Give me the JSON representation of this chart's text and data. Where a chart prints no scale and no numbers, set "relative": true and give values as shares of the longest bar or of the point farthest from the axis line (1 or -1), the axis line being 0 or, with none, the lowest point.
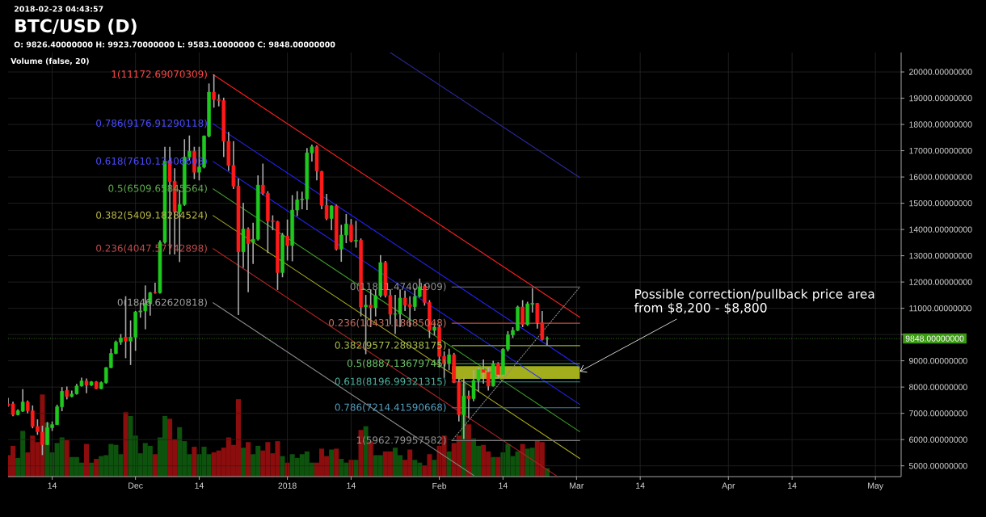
{
  "chart_data": [
    {
      "type": "candlestick",
      "title": "BTC/USD (D)",
      "subtitle": "O: 9826.40000000 H: 9923.70000000 L: 9583.10000000 C: 9848.00000000",
      "annotations": [
        "2018-02-23 04:43:57",
        {
          "text": "Possible correction/pullback price area from $8,200 - $8,800",
          "x": "2018-03-01T16:00",
          "y": 8590
        }
      ],
      "x": [
        "2017-11-05",
        "2017-11-06",
        "2017-11-07",
        "2017-11-08",
        "2017-11-09",
        "2017-11-10",
        "2017-11-11",
        "2017-11-12",
        "2017-11-13",
        "2017-11-14",
        "2017-11-15",
        "2017-11-16",
        "2017-11-17",
        "2017-11-18",
        "2017-11-19",
        "2017-11-20",
        "2017-11-21",
        "2017-11-22",
        "2017-11-23",
        "2017-11-24",
        "2017-11-25",
        "2017-11-26",
        "2017-11-27",
        "2017-11-28",
        "2017-11-29",
        "2017-11-30",
        "2017-12-01",
        "2017-12-02",
        "2017-12-03",
        "2017-12-04",
        "2017-12-05",
        "2017-12-06",
        "2017-12-07",
        "2017-12-08",
        "2017-12-09",
        "2017-12-10",
        "2017-12-11",
        "2017-12-12",
        "2017-12-13",
        "2017-12-14",
        "2017-12-15",
        "2017-12-16",
        "2017-12-17",
        "2017-12-18",
        "2017-12-19",
        "2017-12-20",
        "2017-12-21",
        "2017-12-22",
        "2017-12-23",
        "2017-12-24",
        "2017-12-25",
        "2017-12-26",
        "2017-12-27",
        "2017-12-28",
        "2017-12-29",
        "2017-12-30",
        "2017-12-31",
        "2018-01-01",
        "2018-01-02",
        "2018-01-03",
        "2018-01-04",
        "2018-01-05",
        "2018-01-06",
        "2018-01-07",
        "2018-01-08",
        "2018-01-09",
        "2018-01-10",
        "2018-01-11",
        "2018-01-12",
        "2018-01-13",
        "2018-01-14",
        "2018-01-15",
        "2018-01-16",
        "2018-01-17",
        "2018-01-18",
        "2018-01-19",
        "2018-01-20",
        "2018-01-21",
        "2018-01-22",
        "2018-01-23",
        "2018-01-24",
        "2018-01-25",
        "2018-01-26",
        "2018-01-27",
        "2018-01-28",
        "2018-01-29",
        "2018-01-30",
        "2018-01-31",
        "2018-02-01",
        "2018-02-02",
        "2018-02-03",
        "2018-02-04",
        "2018-02-05",
        "2018-02-06",
        "2018-02-07",
        "2018-02-08",
        "2018-02-09",
        "2018-02-10",
        "2018-02-11",
        "2018-02-12",
        "2018-02-13",
        "2018-02-14",
        "2018-02-15",
        "2018-02-16",
        "2018-02-17",
        "2018-02-18",
        "2018-02-19",
        "2018-02-20",
        "2018-02-21",
        "2018-02-22",
        "2018-02-23"
      ],
      "ohlc": [
        [
          7360,
          7590,
          7250,
          7300
        ],
        [
          7360,
          7440,
          6890,
          6950
        ],
        [
          6950,
          7150,
          6920,
          7100
        ],
        [
          7080,
          7920,
          7050,
          7430
        ],
        [
          7430,
          7490,
          7000,
          7100
        ],
        [
          7100,
          7300,
          6430,
          6500
        ],
        [
          6500,
          6770,
          6180,
          6300
        ],
        [
          6280,
          6530,
          5410,
          5810
        ],
        [
          5810,
          6670,
          5790,
          6450
        ],
        [
          6450,
          6690,
          6330,
          6570
        ],
        [
          6570,
          7330,
          6560,
          7250
        ],
        [
          7250,
          8000,
          7080,
          7840
        ],
        [
          7870,
          8020,
          7530,
          7640
        ],
        [
          7640,
          7870,
          7610,
          7740
        ],
        [
          7740,
          8120,
          7710,
          8040
        ],
        [
          8040,
          8360,
          8020,
          8230
        ],
        [
          8230,
          8330,
          7770,
          8070
        ],
        [
          8070,
          8230,
          8040,
          8200
        ],
        [
          8200,
          8230,
          7920,
          7940
        ],
        [
          7940,
          8210,
          7920,
          8170
        ],
        [
          8170,
          8760,
          8130,
          8740
        ],
        [
          8740,
          9460,
          8720,
          9280
        ],
        [
          9280,
          9770,
          9250,
          9710
        ],
        [
          9710,
          10020,
          9610,
          9870
        ],
        [
          9900,
          11460,
          9100,
          9750
        ],
        [
          9750,
          10540,
          8840,
          9900
        ],
        [
          9900,
          10900,
          9380,
          10860
        ],
        [
          10860,
          11200,
          10640,
          10900
        ],
        [
          10900,
          11870,
          10200,
          11170
        ],
        [
          11170,
          11630,
          10720,
          11590
        ],
        [
          11600,
          11970,
          11560,
          11590
        ],
        [
          11590,
          13590,
          11560,
          13510
        ],
        [
          13510,
          17150,
          13460,
          16610
        ],
        [
          16610,
          17150,
          13050,
          15820
        ],
        [
          15840,
          16330,
          13050,
          14670
        ],
        [
          14670,
          15510,
          12760,
          14950
        ],
        [
          14950,
          17440,
          14900,
          16760
        ],
        [
          16760,
          17580,
          16640,
          16980
        ],
        [
          16980,
          17150,
          15920,
          16180
        ],
        [
          16180,
          17150,
          15870,
          16380
        ],
        [
          16380,
          17580,
          16330,
          17560
        ],
        [
          17560,
          19560,
          17510,
          19230
        ],
        [
          19230,
          19900,
          18640,
          18950
        ],
        [
          18950,
          19150,
          18690,
          18910
        ],
        [
          18910,
          19020,
          16760,
          17360
        ],
        [
          17360,
          17720,
          16230,
          16440
        ],
        [
          16440,
          17360,
          15540,
          15650
        ],
        [
          15650,
          15940,
          10740,
          13150
        ],
        [
          13150,
          15020,
          12540,
          14020
        ],
        [
          14020,
          14080,
          11610,
          13460
        ],
        [
          13510,
          14260,
          12690,
          13630
        ],
        [
          13630,
          16060,
          13580,
          15690
        ],
        [
          15690,
          16510,
          15310,
          15380
        ],
        [
          15380,
          15460,
          13100,
          14330
        ],
        [
          14330,
          14540,
          13970,
          14300
        ],
        [
          14300,
          14330,
          11700,
          12360
        ],
        [
          12360,
          13870,
          12180,
          13790
        ],
        [
          13750,
          14380,
          12820,
          13390
        ],
        [
          13390,
          15310,
          12790,
          14740
        ],
        [
          14740,
          15460,
          14510,
          15130
        ],
        [
          15130,
          15440,
          14770,
          15160
        ],
        [
          15160,
          17100,
          14740,
          16920
        ],
        [
          16920,
          17230,
          16590,
          17150
        ],
        [
          17150,
          17200,
          15870,
          16230
        ],
        [
          16210,
          16230,
          14770,
          14920
        ],
        [
          14920,
          15360,
          14360,
          14420
        ],
        [
          14420,
          14920,
          13970,
          14900
        ],
        [
          14900,
          14950,
          13200,
          13250
        ],
        [
          13250,
          14180,
          12770,
          13790
        ],
        [
          13790,
          14590,
          13480,
          14210
        ],
        [
          14180,
          14400,
          13510,
          13560
        ],
        [
          13560,
          14330,
          13310,
          13590
        ],
        [
          13590,
          13660,
          10690,
          11050
        ],
        [
          11050,
          11510,
          9250,
          11120
        ],
        [
          11120,
          11720,
          10280,
          11020
        ],
        [
          11020,
          11720,
          10690,
          11480
        ],
        [
          11480,
          13030,
          11410,
          12740
        ],
        [
          12740,
          12800,
          11410,
          11490
        ],
        [
          11490,
          11720,
          10380,
          10770
        ],
        [
          10770,
          11510,
          10020,
          10790
        ],
        [
          10790,
          11720,
          10280,
          11390
        ],
        [
          11390,
          11670,
          10900,
          11120
        ],
        [
          11140,
          11460,
          10280,
          11060
        ],
        [
          11060,
          11770,
          10900,
          11450
        ],
        [
          11450,
          12130,
          11410,
          11820
        ],
        [
          11840,
          11920,
          11100,
          11220
        ],
        [
          11220,
          11310,
          9870,
          10160
        ],
        [
          10160,
          10480,
          9970,
          10280
        ],
        [
          10280,
          10380,
          8740,
          9170
        ],
        [
          9170,
          9360,
          8350,
          8890
        ],
        [
          8890,
          9460,
          8640,
          9230
        ],
        [
          9230,
          9300,
          8150,
          8180
        ],
        [
          8180,
          8330,
          6690,
          6950
        ],
        [
          6950,
          8350,
          6020,
          7660
        ],
        [
          7660,
          7870,
          6810,
          7560
        ],
        [
          7560,
          8640,
          7460,
          8250
        ],
        [
          8250,
          8740,
          7820,
          8660
        ],
        [
          8660,
          9050,
          8130,
          8560
        ],
        [
          8560,
          8740,
          7870,
          8040
        ],
        [
          8040,
          9000,
          8020,
          8890
        ],
        [
          8890,
          8950,
          8330,
          8480
        ],
        [
          8480,
          9480,
          8430,
          9440
        ],
        [
          9440,
          10130,
          9360,
          9990
        ],
        [
          9990,
          10280,
          9870,
          10160
        ],
        [
          10160,
          11100,
          10130,
          11050
        ],
        [
          11050,
          11310,
          10280,
          10380
        ],
        [
          10380,
          11250,
          10330,
          11170
        ],
        [
          11150,
          11770,
          10840,
          11190
        ],
        [
          11190,
          11200,
          10230,
          10450
        ],
        [
          10450,
          10900,
          9770,
          9810
        ],
        [
          9826.4,
          9923.7,
          9583.1,
          9848
        ]
      ],
      "colors": [
        "#ff1a1a",
        "#ff1a1a",
        "#1ec81e",
        "#1ec81e",
        "#ff1a1a",
        "#ff1a1a",
        "#ff1a1a",
        "#ff1a1a",
        "#1ec81e",
        "#1ec81e",
        "#1ec81e",
        "#1ec81e",
        "#ff1a1a",
        "#1ec81e",
        "#1ec81e",
        "#1ec81e",
        "#ff1a1a",
        "#1ec81e",
        "#ff1a1a",
        "#1ec81e",
        "#1ec81e",
        "#1ec81e",
        "#1ec81e",
        "#1ec81e",
        "#ff1a1a",
        "#1ec81e",
        "#1ec81e",
        "#1ec81e",
        "#1ec81e",
        "#1ec81e",
        "#ff1a1a",
        "#1ec81e",
        "#1ec81e",
        "#ff1a1a",
        "#ff1a1a",
        "#1ec81e",
        "#1ec81e",
        "#1ec81e",
        "#ff1a1a",
        "#1ec81e",
        "#1ec81e",
        "#1ec81e",
        "#ff1a1a",
        "#ff1a1a",
        "#ff1a1a",
        "#ff1a1a",
        "#ff1a1a",
        "#ff1a1a",
        "#1ec81e",
        "#ff1a1a",
        "#1ec81e",
        "#1ec81e",
        "#ff1a1a",
        "#ff1a1a",
        "#ff1a1a",
        "#ff1a1a",
        "#1ec81e",
        "#ff1a1a",
        "#1ec81e",
        "#1ec81e",
        "#1ec81e",
        "#1ec81e",
        "#1ec81e",
        "#ff1a1a",
        "#ff1a1a",
        "#ff1a1a",
        "#1ec81e",
        "#ff1a1a",
        "#1ec81e",
        "#1ec81e",
        "#ff1a1a",
        "#1ec81e",
        "#ff1a1a",
        "#1ec81e",
        "#ff1a1a",
        "#1ec81e",
        "#1ec81e",
        "#ff1a1a",
        "#ff1a1a",
        "#1ec81e",
        "#1ec81e",
        "#ff1a1a",
        "#ff1a1a",
        "#1ec81e",
        "#1ec81e",
        "#ff1a1a",
        "#ff1a1a",
        "#1ec81e",
        "#ff1a1a",
        "#ff1a1a",
        "#1ec81e",
        "#ff1a1a",
        "#ff1a1a",
        "#1ec81e",
        "#ff1a1a",
        "#1ec81e",
        "#1ec81e",
        "#ff1a1a",
        "#ff1a1a",
        "#1ec81e",
        "#ff1a1a",
        "#1ec81e",
        "#1ec81e",
        "#1ec81e",
        "#1ec81e",
        "#ff1a1a",
        "#1ec81e",
        "#1ec81e",
        "#ff1a1a",
        "#ff1a1a",
        "#1ec81e"
      ],
      "series": [
        {
          "type": "area",
          "x": [
            "2018-02-03T14:00",
            "2018-03-01T16:00"
          ],
          "values": [
            null,
            null
          ],
          "upper": [
            8800,
            8800
          ],
          "lower": [
            8310,
            8310
          ],
          "color": "#a3ae1c"
        },
        {
          "type": "line",
          "name": "1(11172.69070309)",
          "x": [
            "2017-12-16T20:00",
            "2018-03-01T16:00"
          ],
          "values": [
            19900,
            10660
          ],
          "color": "#ff1f1f"
        },
        {
          "type": "line",
          "name": "0.786(9176.91290118)",
          "x": [
            "2017-12-16T20:00",
            "2018-03-01T16:00"
          ],
          "values": [
            18030,
            8780
          ],
          "color": "#2323ff"
        },
        {
          "type": "line",
          "name": "0.618(7610.13406603)",
          "x": [
            "2017-12-16T20:00",
            "2018-03-01T16:00"
          ],
          "values": [
            16590,
            7340
          ],
          "color": "#2323ff"
        },
        {
          "type": "line",
          "name": "0.5(6509.65845564)",
          "x": [
            "2017-12-16T20:00",
            "2018-03-01T16:00"
          ],
          "values": [
            15550,
            6300
          ],
          "color": "#3c9a2a"
        },
        {
          "type": "line",
          "name": "0.382(5409.18284524)",
          "x": [
            "2017-12-16T20:00",
            "2018-03-01T16:00"
          ],
          "values": [
            14530,
            5280
          ],
          "color": "#a8a81e"
        },
        {
          "type": "line",
          "name": "0.236(4047.57742898)",
          "x": [
            "2017-12-16T20:00",
            "2018-02-25"
          ],
          "values": [
            13270,
            4610
          ],
          "color": "#b02424"
        },
        {
          "type": "line",
          "name": "0(1846.62620818)",
          "x": [
            "2017-12-16T20:00",
            "2018-02-08"
          ],
          "values": [
            11210,
            4640
          ],
          "color": "#8a8a8a"
        },
        {
          "type": "line",
          "x": [
            "2018-01-22",
            "2018-03-01T16:00"
          ],
          "values": [
            20740,
            15980
          ],
          "color": "#2a2aa0"
        },
        {
          "type": "line",
          "name": "0(11811.47401909)",
          "x": [
            "2018-02-03T14:00",
            "2018-03-01T16:00"
          ],
          "values": [
            11811.47401909,
            11811.47401909
          ],
          "color": "#7a7a7a"
        },
        {
          "type": "line",
          "name": "0.236(10431.18685048)",
          "x": [
            "2018-02-03T14:00",
            "2018-03-01T16:00"
          ],
          "values": [
            10431.18685048,
            10431.18685048
          ],
          "color": "#c0503c"
        },
        {
          "type": "line",
          "name": "0.382(9577.28038175)",
          "x": [
            "2018-02-03T14:00",
            "2018-03-01T16:00"
          ],
          "values": [
            9577.28038175,
            9577.28038175
          ],
          "color": "#9ab32a"
        },
        {
          "type": "line",
          "name": "0.5(8887.13679745)",
          "x": [
            "2018-02-03T14:00",
            "2018-03-01T16:00"
          ],
          "values": [
            8887.13679745,
            8887.13679745
          ],
          "color": "#4cbb4c"
        },
        {
          "type": "line",
          "name": "0.618(8196.99321315)",
          "x": [
            "2018-02-03T14:00",
            "2018-03-01T16:00"
          ],
          "values": [
            8196.99321315,
            8196.99321315
          ],
          "color": "#27a08a"
        },
        {
          "type": "line",
          "name": "0.786(7214.41590668)",
          "x": [
            "2018-02-03T14:00",
            "2018-03-01T16:00"
          ],
          "values": [
            7214.41590668,
            7214.41590668
          ],
          "color": "#2f87b0"
        },
        {
          "type": "line",
          "name": "1(5962.79957582)",
          "x": [
            "2018-02-03T14:00",
            "2018-03-01T16:00"
          ],
          "values": [
            5962.79957582,
            5962.79957582
          ],
          "color": "#7a7a7a"
        },
        {
          "type": "line",
          "x": [
            "2018-02-03T14:00",
            "2018-03-01T16:00"
          ],
          "values": [
            5960,
            11810
          ],
          "color": "#8a8a8a",
          "line_style": "dotted"
        }
      ],
      "xlim": [
        "2017-11-05",
        "2018-05-06T06:00"
      ],
      "xticks": [
        {
          "value": "2017-11-14",
          "label": "14"
        },
        {
          "value": "2017-12-01",
          "label": "Dec"
        },
        {
          "value": "2017-12-14",
          "label": "14"
        },
        {
          "value": "2018-01-01",
          "label": "2018"
        },
        {
          "value": "2018-01-14",
          "label": "14"
        },
        {
          "value": "2018-02-01",
          "label": "Feb"
        },
        {
          "value": "2018-02-14",
          "label": "14"
        },
        {
          "value": "2018-03-01",
          "label": "Mar"
        },
        {
          "value": "2018-03-14",
          "label": "14"
        },
        {
          "value": "2018-04-01",
          "label": "Apr"
        },
        {
          "value": "2018-04-14",
          "label": "14"
        },
        {
          "value": "2018-05-01",
          "label": "May"
        }
      ],
      "ylim": [
        4590,
        20740
      ],
      "yticks": [
        {
          "value": 5000,
          "label": "5000.00000000"
        },
        {
          "value": 6000,
          "label": "6000.00000000"
        },
        {
          "value": 7000,
          "label": "7000.00000000"
        },
        {
          "value": 8000,
          "label": "8000.00000000"
        },
        {
          "value": 9000,
          "label": "9000.00000000"
        },
        {
          "value": 10000,
          "label": null
        },
        {
          "value": 11000,
          "label": "11000.00000000"
        },
        {
          "value": 12000,
          "label": "12000.00000000"
        },
        {
          "value": 13000,
          "label": "13000.00000000"
        },
        {
          "value": 14000,
          "label": "14000.00000000"
        },
        {
          "value": 15000,
          "label": "15000.00000000"
        },
        {
          "value": 16000,
          "label": "16000.00000000"
        },
        {
          "value": 17000,
          "label": "17000.00000000"
        },
        {
          "value": 18000,
          "label": "18000.00000000"
        },
        {
          "value": 19000,
          "label": "19000.00000000"
        },
        {
          "value": 20000,
          "label": "20000.00000000"
        }
      ],
      "ref_lines": [
        {
          "axis": "y",
          "value": 9848,
          "label": "9848.00000000",
          "color": "#3c9a14",
          "line_style": "dotted"
        }
      ],
      "grid": true
    },
    {
      "type": "bar",
      "title": "Volume (false, 20)",
      "relative": true,
      "x": [
        "2017-11-05",
        "2017-11-06",
        "2017-11-07",
        "2017-11-08",
        "2017-11-09",
        "2017-11-10",
        "2017-11-11",
        "2017-11-12",
        "2017-11-13",
        "2017-11-14",
        "2017-11-15",
        "2017-11-16",
        "2017-11-17",
        "2017-11-18",
        "2017-11-19",
        "2017-11-20",
        "2017-11-21",
        "2017-11-22",
        "2017-11-23",
        "2017-11-24",
        "2017-11-25",
        "2017-11-26",
        "2017-11-27",
        "2017-11-28",
        "2017-11-29",
        "2017-11-30",
        "2017-12-01",
        "2017-12-02",
        "2017-12-03",
        "2017-12-04",
        "2017-12-05",
        "2017-12-06",
        "2017-12-07",
        "2017-12-08",
        "2017-12-09",
        "2017-12-10",
        "2017-12-11",
        "2017-12-12",
        "2017-12-13",
        "2017-12-14",
        "2017-12-15",
        "2017-12-16",
        "2017-12-17",
        "2017-12-18",
        "2017-12-19",
        "2017-12-20",
        "2017-12-21",
        "2017-12-22",
        "2017-12-23",
        "2017-12-24",
        "2017-12-25",
        "2017-12-26",
        "2017-12-27",
        "2017-12-28",
        "2017-12-29",
        "2017-12-30",
        "2017-12-31",
        "2018-01-01",
        "2018-01-02",
        "2018-01-03",
        "2018-01-04",
        "2018-01-05",
        "2018-01-06",
        "2018-01-07",
        "2018-01-08",
        "2018-01-09",
        "2018-01-10",
        "2018-01-11",
        "2018-01-12",
        "2018-01-13",
        "2018-01-14",
        "2018-01-15",
        "2018-01-16",
        "2018-01-17",
        "2018-01-18",
        "2018-01-19",
        "2018-01-20",
        "2018-01-21",
        "2018-01-22",
        "2018-01-23",
        "2018-01-24",
        "2018-01-25",
        "2018-01-26",
        "2018-01-27",
        "2018-01-28",
        "2018-01-29",
        "2018-01-30",
        "2018-01-31",
        "2018-02-01",
        "2018-02-02",
        "2018-02-03",
        "2018-02-04",
        "2018-02-05",
        "2018-02-06",
        "2018-02-07",
        "2018-02-08",
        "2018-02-09",
        "2018-02-10",
        "2018-02-11",
        "2018-02-12",
        "2018-02-13",
        "2018-02-14",
        "2018-02-15",
        "2018-02-16",
        "2018-02-17",
        "2018-02-18",
        "2018-02-19",
        "2018-02-20",
        "2018-02-21",
        "2018-02-22",
        "2018-02-23"
      ],
      "values": [
        0.23,
        0.33,
        0.2,
        0.49,
        0.26,
        0.44,
        0.37,
        0.88,
        0.58,
        0.26,
        0.36,
        0.42,
        0.39,
        0.21,
        0.21,
        0.15,
        0.35,
        0.15,
        0.19,
        0.22,
        0.23,
        0.35,
        0.34,
        0.24,
        0.69,
        0.65,
        0.44,
        0.25,
        0.36,
        0.33,
        0.24,
        0.42,
        0.65,
        0.62,
        0.4,
        0.53,
        0.38,
        0.24,
        0.32,
        0.24,
        0.32,
        0.24,
        0.26,
        0.28,
        0.31,
        0.42,
        0.34,
        0.83,
        0.31,
        0.37,
        0.24,
        0.33,
        0.28,
        0.37,
        0.25,
        0.38,
        0.22,
        0.15,
        0.24,
        0.2,
        0.24,
        0.27,
        0.15,
        0.15,
        0.3,
        0.22,
        0.29,
        0.3,
        0.19,
        0.15,
        0.18,
        0.18,
        0.5,
        0.54,
        0.38,
        0.23,
        0.23,
        0.27,
        0.27,
        0.31,
        0.23,
        0.18,
        0.29,
        0.18,
        0.15,
        0.12,
        0.24,
        0.18,
        0.33,
        0.44,
        0.27,
        0.36,
        0.44,
        1,
        0.56,
        0.41,
        0.33,
        0.34,
        0.27,
        0.21,
        0.21,
        0.26,
        0.35,
        0.22,
        0.27,
        0.35,
        0.3,
        0.31,
        0.39,
        0.37,
        0.09
      ],
      "colors": [
        "#8c0d0d",
        "#8c0d0d",
        "#0d520d",
        "#0d520d",
        "#8c0d0d",
        "#8c0d0d",
        "#8c0d0d",
        "#8c0d0d",
        "#0d520d",
        "#0d520d",
        "#0d520d",
        "#0d520d",
        "#8c0d0d",
        "#0d520d",
        "#0d520d",
        "#0d520d",
        "#8c0d0d",
        "#0d520d",
        "#8c0d0d",
        "#0d520d",
        "#0d520d",
        "#0d520d",
        "#0d520d",
        "#0d520d",
        "#8c0d0d",
        "#0d520d",
        "#0d520d",
        "#0d520d",
        "#0d520d",
        "#0d520d",
        "#8c0d0d",
        "#0d520d",
        "#0d520d",
        "#8c0d0d",
        "#8c0d0d",
        "#0d520d",
        "#0d520d",
        "#0d520d",
        "#8c0d0d",
        "#0d520d",
        "#0d520d",
        "#0d520d",
        "#8c0d0d",
        "#8c0d0d",
        "#8c0d0d",
        "#8c0d0d",
        "#8c0d0d",
        "#8c0d0d",
        "#0d520d",
        "#8c0d0d",
        "#0d520d",
        "#0d520d",
        "#8c0d0d",
        "#8c0d0d",
        "#8c0d0d",
        "#8c0d0d",
        "#0d520d",
        "#8c0d0d",
        "#0d520d",
        "#0d520d",
        "#0d520d",
        "#0d520d",
        "#0d520d",
        "#8c0d0d",
        "#8c0d0d",
        "#8c0d0d",
        "#0d520d",
        "#8c0d0d",
        "#0d520d",
        "#0d520d",
        "#8c0d0d",
        "#0d520d",
        "#8c0d0d",
        "#0d520d",
        "#8c0d0d",
        "#0d520d",
        "#0d520d",
        "#8c0d0d",
        "#8c0d0d",
        "#0d520d",
        "#0d520d",
        "#8c0d0d",
        "#8c0d0d",
        "#0d520d",
        "#0d520d",
        "#8c0d0d",
        "#8c0d0d",
        "#0d520d",
        "#8c0d0d",
        "#8c0d0d",
        "#0d520d",
        "#8c0d0d",
        "#8c0d0d",
        "#0d520d",
        "#8c0d0d",
        "#0d520d",
        "#0d520d",
        "#8c0d0d",
        "#8c0d0d",
        "#0d520d",
        "#8c0d0d",
        "#0d520d",
        "#0d520d",
        "#0d520d",
        "#0d520d",
        "#8c0d0d",
        "#0d520d",
        "#0d520d",
        "#8c0d0d",
        "#8c0d0d",
        "#0d520d"
      ],
      "xlim": [
        "2017-11-05",
        "2018-05-06T06:00"
      ],
      "tick_labels": false
    }
  ]
}
